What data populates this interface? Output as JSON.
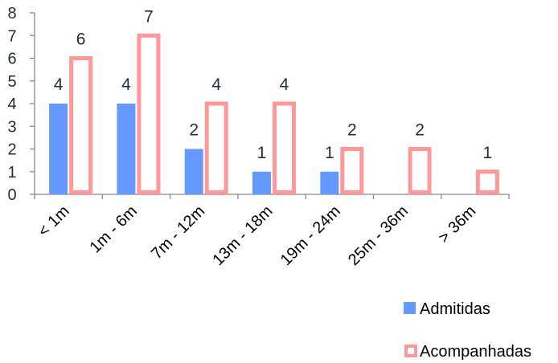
{
  "chart_data": {
    "type": "bar",
    "categories": [
      "< 1m",
      "1m - 6m",
      "7m - 12m",
      "13m - 18m",
      "19m - 24m",
      "25m - 36m",
      "> 36m"
    ],
    "series": [
      {
        "name": "Admitidas",
        "values": [
          4,
          4,
          2,
          1,
          1,
          null,
          null
        ],
        "color": "#6699ff"
      },
      {
        "name": "Acompanhadas",
        "values": [
          6,
          7,
          4,
          4,
          2,
          2,
          1
        ],
        "color": "#ff9999"
      }
    ],
    "yticks": [
      "0",
      "1",
      "2",
      "3",
      "4",
      "5",
      "6",
      "7",
      "8"
    ],
    "ylim": [
      0,
      8
    ],
    "title": "",
    "xlabel": "",
    "ylabel": "",
    "grid": false,
    "legend": "bottom-right"
  }
}
